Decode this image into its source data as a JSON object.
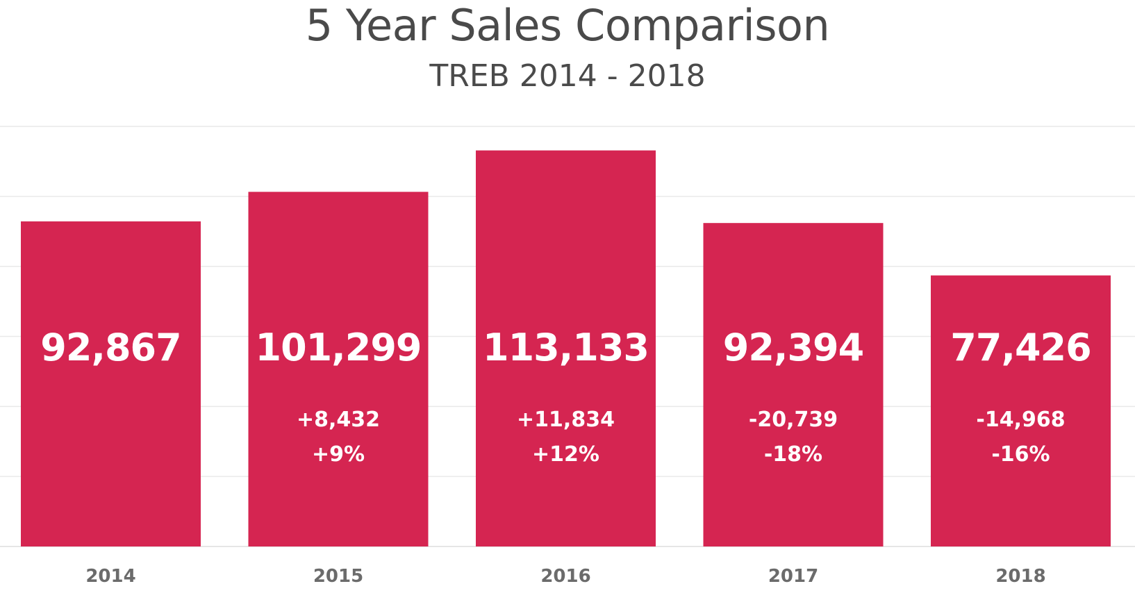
{
  "chart_data": {
    "type": "bar",
    "title": "5 Year Sales Comparison",
    "subtitle": "TREB 2014 - 2018",
    "categories": [
      "2014",
      "2015",
      "2016",
      "2017",
      "2018"
    ],
    "values": [
      92867,
      101299,
      113133,
      92394,
      77426
    ],
    "value_labels": [
      "92,867",
      "101,299",
      "113,133",
      "92,394",
      "77,426"
    ],
    "change_labels": [
      "",
      "+8,432",
      "+11,834",
      "-20,739",
      "-14,968"
    ],
    "percent_labels": [
      "",
      "+9%",
      "+12%",
      "-18%",
      "-16%"
    ],
    "xlabel": "",
    "ylabel": "",
    "ylim": [
      0,
      120000
    ],
    "grid": true,
    "legend": "none",
    "colors": {
      "bar": "#d52551",
      "gridline": "#e9e9e9",
      "baseline": "#dddddd",
      "axis_text": "#6b6b6b",
      "bar_text": "#ffffff"
    }
  }
}
